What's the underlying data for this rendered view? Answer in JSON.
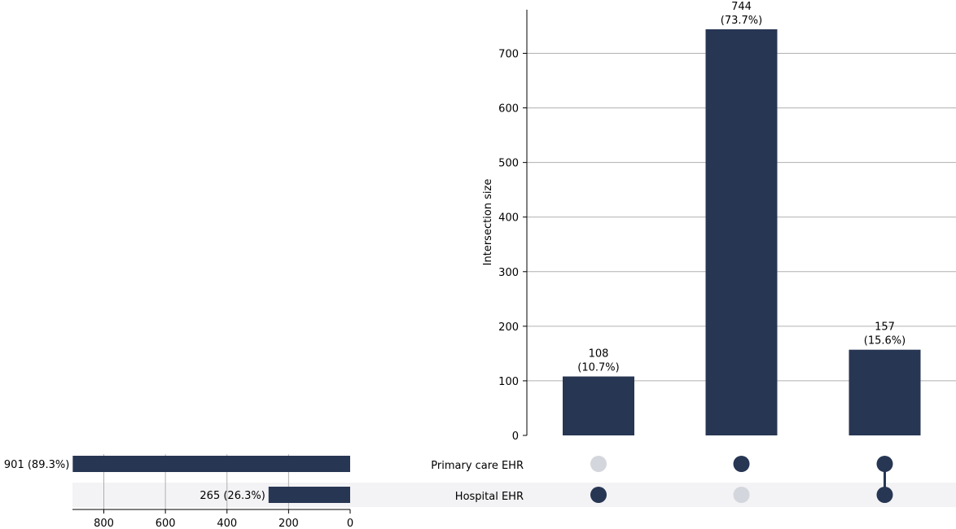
{
  "chart_data": {
    "type": "upset",
    "title": "",
    "intersection_axis_label": "Intersection size",
    "intersection_ylim": [
      0,
      780
    ],
    "intersection_yticks": [
      0,
      100,
      200,
      300,
      400,
      500,
      600,
      700
    ],
    "set_size_xlim": [
      900,
      0
    ],
    "set_size_xticks": [
      800,
      600,
      400,
      200,
      0
    ],
    "sets": [
      {
        "name": "Primary care EHR",
        "size": 901,
        "label": "901 (89.3%)"
      },
      {
        "name": "Hospital EHR",
        "size": 265,
        "label": "265 (26.3%)"
      }
    ],
    "intersections": [
      {
        "members": [
          false,
          true
        ],
        "value": 108,
        "count_label": "108",
        "percent_label": "(10.7%)"
      },
      {
        "members": [
          true,
          false
        ],
        "value": 744,
        "count_label": "744",
        "percent_label": "(73.7%)"
      },
      {
        "members": [
          true,
          true
        ],
        "value": 157,
        "count_label": "157",
        "percent_label": "(15.6%)"
      }
    ],
    "grid": true
  },
  "colors": {
    "bar": "#273653",
    "dot_active": "#273653",
    "dot_inactive": "#d3d6dc",
    "grid": "#b0b0b0",
    "stripe": "#f3f3f5",
    "axis": "#000000"
  }
}
